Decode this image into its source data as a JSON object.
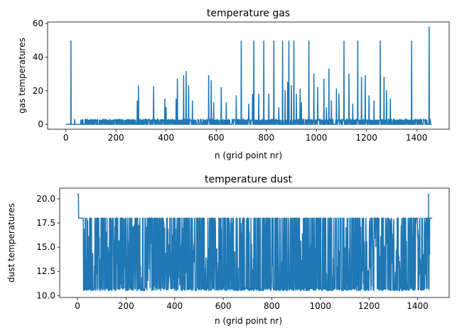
{
  "chart_data": [
    {
      "type": "line",
      "title": "temperature gas",
      "xlabel": "n (grid point nr)",
      "ylabel": "gas temperatures",
      "xlim": [
        -73,
        1530
      ],
      "ylim": [
        -2.9,
        60.9
      ],
      "xticks": [
        0,
        200,
        400,
        600,
        800,
        1000,
        1200,
        1400
      ],
      "yticks": [
        0,
        20,
        40,
        60
      ],
      "grid": false,
      "color": "#1f77b4",
      "baseline": 0,
      "noise_level": 2.5,
      "noise_start": 60,
      "noise_end": 1455,
      "spikes": [
        {
          "x": 20,
          "y": 49.6
        },
        {
          "x": 35,
          "y": 3
        },
        {
          "x": 285,
          "y": 14
        },
        {
          "x": 290,
          "y": 23
        },
        {
          "x": 350,
          "y": 22.5
        },
        {
          "x": 395,
          "y": 15
        },
        {
          "x": 400,
          "y": 10
        },
        {
          "x": 440,
          "y": 15
        },
        {
          "x": 445,
          "y": 27
        },
        {
          "x": 470,
          "y": 29
        },
        {
          "x": 480,
          "y": 31.5
        },
        {
          "x": 490,
          "y": 23
        },
        {
          "x": 505,
          "y": 14
        },
        {
          "x": 570,
          "y": 29
        },
        {
          "x": 580,
          "y": 26
        },
        {
          "x": 590,
          "y": 13
        },
        {
          "x": 620,
          "y": 22
        },
        {
          "x": 640,
          "y": 13
        },
        {
          "x": 680,
          "y": 17
        },
        {
          "x": 700,
          "y": 49.6
        },
        {
          "x": 730,
          "y": 12
        },
        {
          "x": 745,
          "y": 18
        },
        {
          "x": 750,
          "y": 49.6
        },
        {
          "x": 770,
          "y": 18
        },
        {
          "x": 790,
          "y": 49.6
        },
        {
          "x": 810,
          "y": 18
        },
        {
          "x": 830,
          "y": 49.6
        },
        {
          "x": 850,
          "y": 10
        },
        {
          "x": 865,
          "y": 49.6
        },
        {
          "x": 875,
          "y": 20
        },
        {
          "x": 885,
          "y": 25
        },
        {
          "x": 890,
          "y": 49.6
        },
        {
          "x": 900,
          "y": 23
        },
        {
          "x": 910,
          "y": 49.6
        },
        {
          "x": 920,
          "y": 18
        },
        {
          "x": 935,
          "y": 21
        },
        {
          "x": 940,
          "y": 13
        },
        {
          "x": 970,
          "y": 49.6
        },
        {
          "x": 990,
          "y": 30
        },
        {
          "x": 1005,
          "y": 22
        },
        {
          "x": 1030,
          "y": 27
        },
        {
          "x": 1040,
          "y": 10
        },
        {
          "x": 1050,
          "y": 33
        },
        {
          "x": 1060,
          "y": 14
        },
        {
          "x": 1080,
          "y": 21
        },
        {
          "x": 1090,
          "y": 18
        },
        {
          "x": 1110,
          "y": 49.6
        },
        {
          "x": 1130,
          "y": 30
        },
        {
          "x": 1145,
          "y": 12
        },
        {
          "x": 1165,
          "y": 49.6
        },
        {
          "x": 1180,
          "y": 28
        },
        {
          "x": 1195,
          "y": 29
        },
        {
          "x": 1210,
          "y": 17
        },
        {
          "x": 1230,
          "y": 14
        },
        {
          "x": 1255,
          "y": 49.6
        },
        {
          "x": 1270,
          "y": 28
        },
        {
          "x": 1280,
          "y": 20
        },
        {
          "x": 1295,
          "y": 15
        },
        {
          "x": 1380,
          "y": 49.6
        },
        {
          "x": 1420,
          "y": 3
        },
        {
          "x": 1450,
          "y": 58
        }
      ]
    },
    {
      "type": "line",
      "title": "temperature dust",
      "xlabel": "n (grid point nr)",
      "ylabel": "dust temperatures",
      "xlim": [
        -73,
        1530
      ],
      "ylim": [
        9.8,
        21.1
      ],
      "xticks": [
        0,
        200,
        400,
        600,
        800,
        1000,
        1200,
        1400
      ],
      "yticks": [
        10.0,
        12.5,
        15.0,
        17.5,
        20.0
      ],
      "yticklabels": [
        "10.0",
        "12.5",
        "15.0",
        "17.5",
        "20.0"
      ],
      "grid": false,
      "color": "#1f77b4",
      "start_value": 20.5,
      "upper_level": 18.0,
      "lower_level": 10.5,
      "noise_start": 25,
      "noise_end": 1450,
      "end_values": [
        {
          "x": 1445,
          "y": 20.5
        },
        {
          "x": 1455,
          "y": 18.0
        }
      ]
    }
  ]
}
